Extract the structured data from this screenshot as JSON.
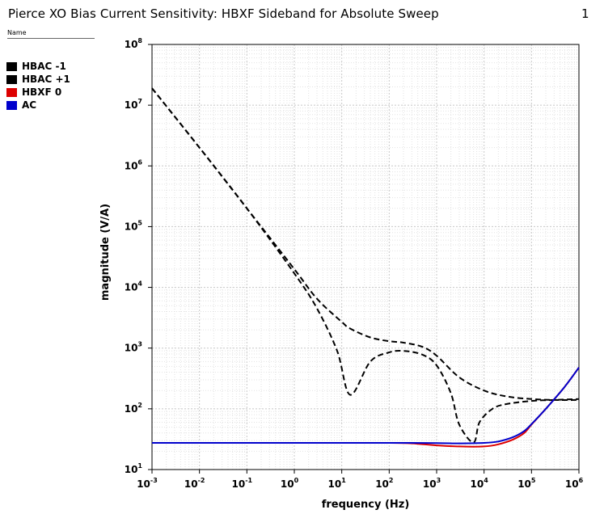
{
  "title": "Pierce XO Bias Current Sensitivity: HBXF Sideband for Absolute Sweep",
  "title_right": "1",
  "legend_header": "Name",
  "chart_data": {
    "type": "line",
    "title": "Pierce XO Bias Current Sensitivity: HBXF Sideband for Absolute Sweep",
    "xlabel": "frequency (Hz)",
    "ylabel": "magnitude (V/A)",
    "xscale": "log",
    "yscale": "log",
    "xlim": [
      0.001,
      1000000
    ],
    "ylim": [
      10,
      100000000
    ],
    "grid": true,
    "legend_placement": "left",
    "x_tick_exponents": [
      "-3",
      "-2",
      "-1",
      "0",
      "1",
      "2",
      "3",
      "4",
      "5",
      "6"
    ],
    "y_tick_exponents": [
      "1",
      "2",
      "3",
      "4",
      "5",
      "6",
      "7",
      "8"
    ],
    "tick_base": "10",
    "series": [
      {
        "name": "HBAC -1",
        "color": "#000000",
        "dashed": true,
        "x": [
          0.001,
          0.01,
          0.1,
          1,
          3,
          10,
          15,
          40,
          100,
          200,
          500,
          1000,
          3000,
          10000,
          30000,
          100000,
          300000,
          1000000
        ],
        "y": [
          19000000,
          2000000,
          200000,
          20000,
          6500,
          2700,
          2100,
          1500,
          1300,
          1230,
          1050,
          750,
          330,
          200,
          160,
          145,
          140,
          140
        ]
      },
      {
        "name": "HBAC +1",
        "color": "#000000",
        "dashed": true,
        "x": [
          0.001,
          0.01,
          0.1,
          1,
          3,
          8,
          15,
          40,
          100,
          200,
          500,
          1000,
          2000,
          3000,
          6000,
          8000,
          15000,
          30000,
          100000,
          300000,
          1000000
        ],
        "y": [
          19000000,
          2000000,
          200000,
          17000,
          4500,
          900,
          170,
          600,
          850,
          900,
          780,
          520,
          180,
          55,
          28,
          60,
          100,
          120,
          135,
          140,
          145
        ]
      },
      {
        "name": "HBXF 0",
        "color": "#dd0000",
        "dashed": false,
        "x": [
          0.001,
          0.01,
          0.1,
          1,
          10,
          100,
          300,
          1000,
          3000,
          10000,
          20000,
          40000,
          70000,
          100000,
          200000,
          500000,
          1000000
        ],
        "y": [
          27.5,
          27.5,
          27.5,
          27.5,
          27.5,
          27.5,
          27,
          25,
          24,
          24,
          26,
          31,
          40,
          55,
          100,
          230,
          480
        ]
      },
      {
        "name": "AC",
        "color": "#0000cc",
        "dashed": false,
        "x": [
          0.001,
          0.01,
          0.1,
          1,
          10,
          100,
          1000,
          3000,
          10000,
          20000,
          40000,
          70000,
          100000,
          200000,
          500000,
          1000000
        ],
        "y": [
          27.5,
          27.5,
          27.5,
          27.5,
          27.5,
          27.5,
          27.3,
          27,
          27.5,
          29,
          34,
          43,
          56,
          100,
          230,
          480
        ]
      }
    ]
  }
}
